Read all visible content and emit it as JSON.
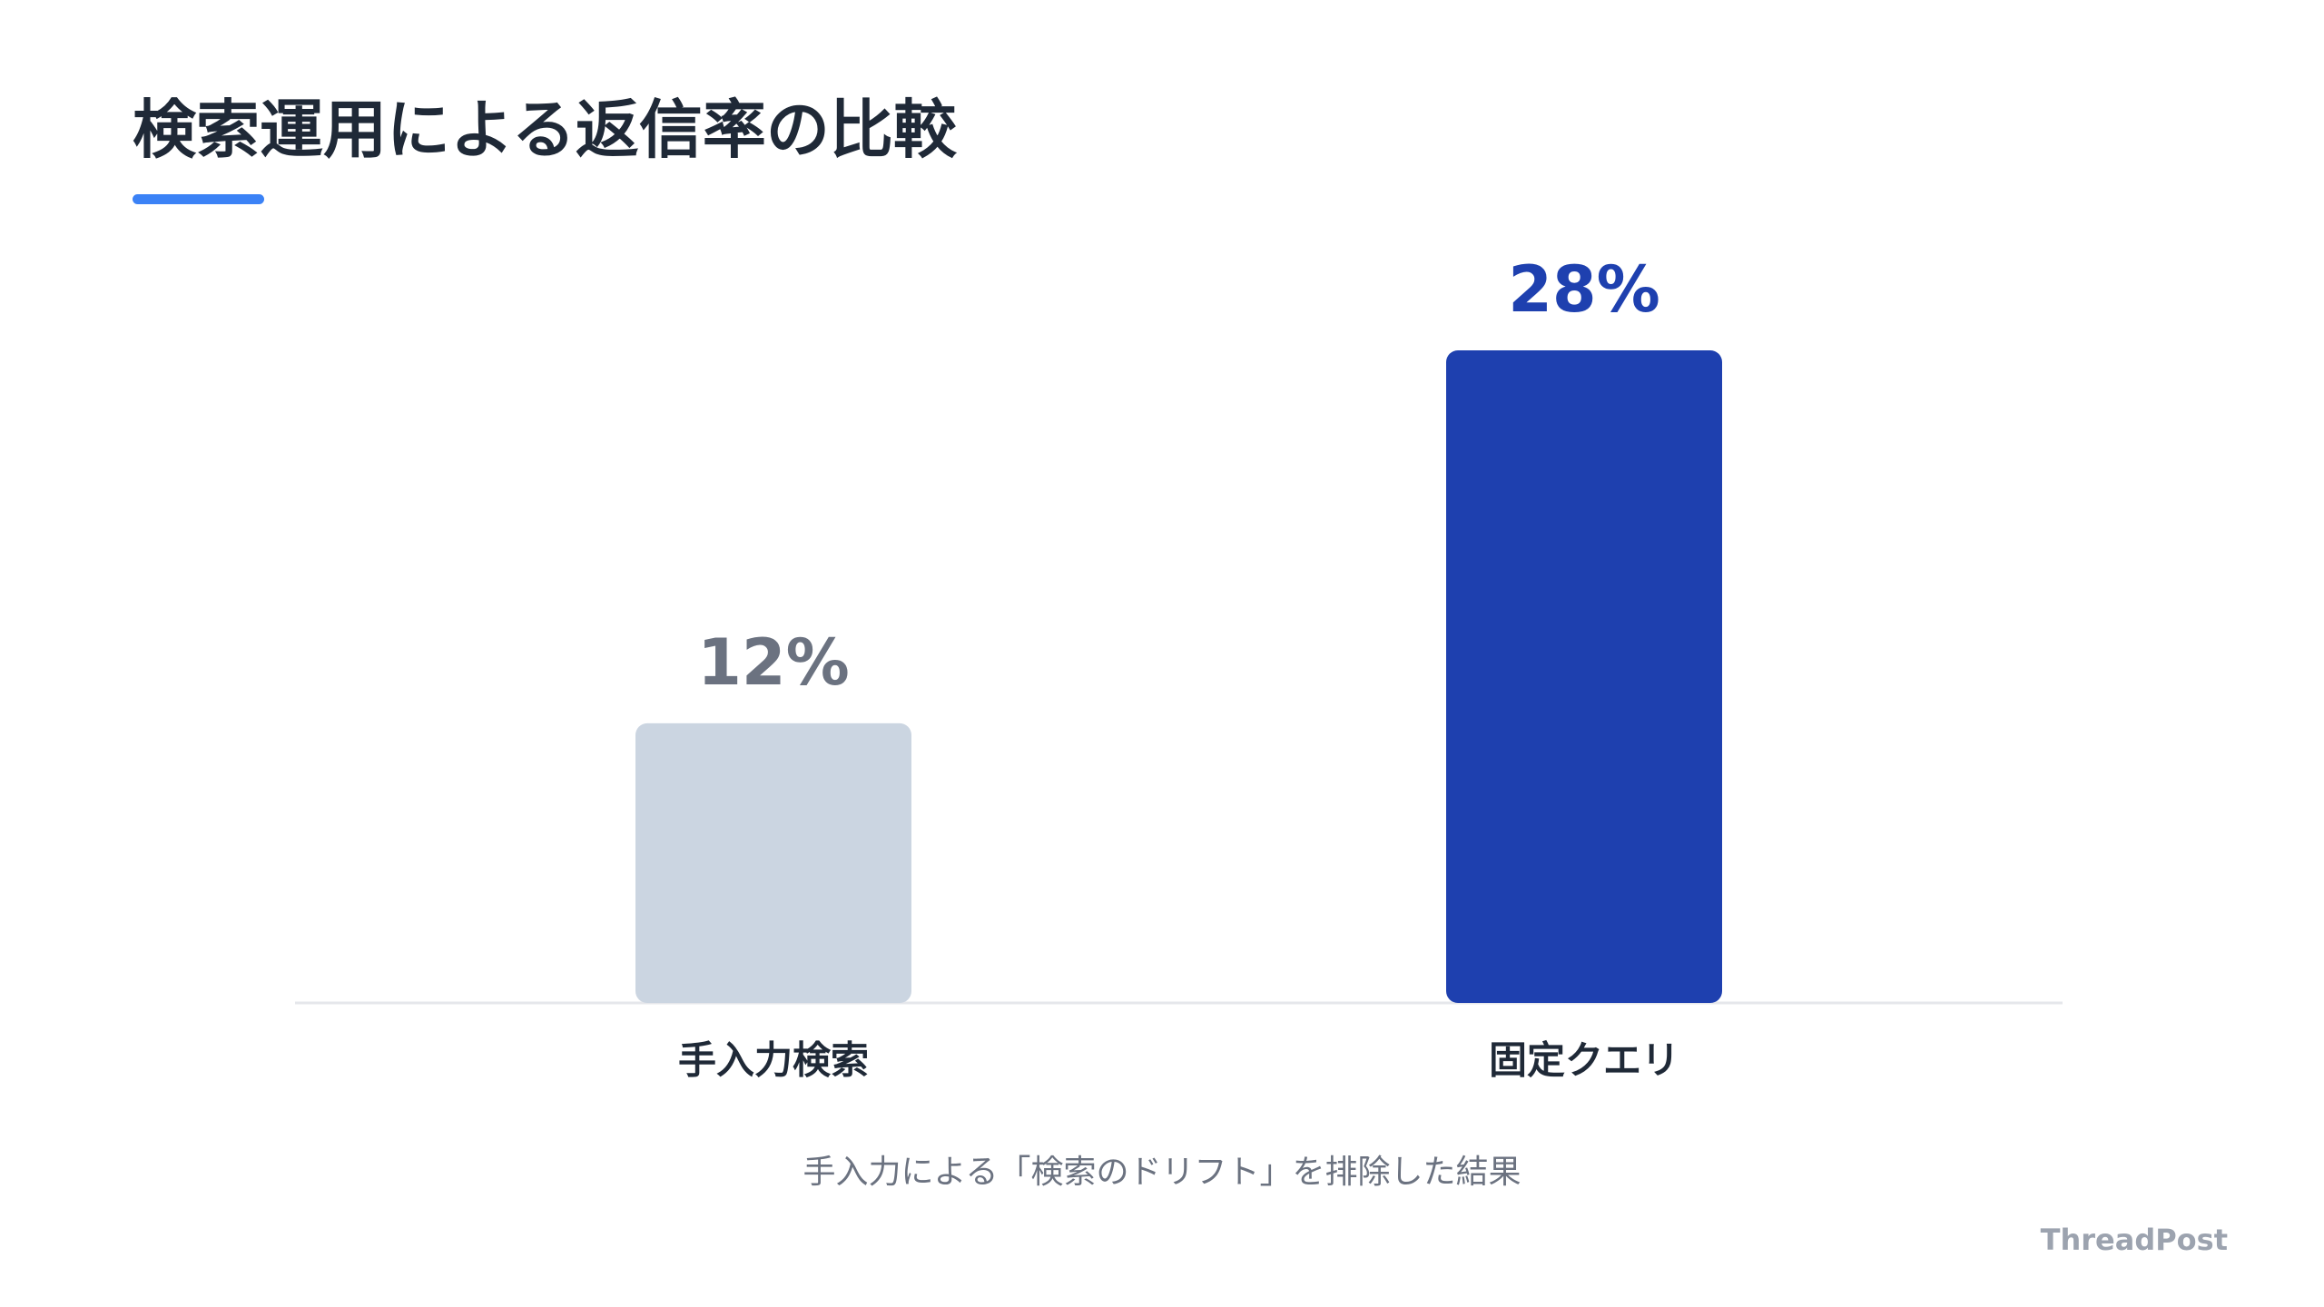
{
  "chart_data": {
    "type": "bar",
    "title": "検索運用による返信率の比較",
    "categories": [
      "手入力検索",
      "固定クエリ"
    ],
    "values": [
      12,
      28
    ],
    "value_labels": [
      "12%",
      "28%"
    ],
    "colors": [
      "#cbd5e1",
      "#1e40af"
    ],
    "caption": "手入力による「検索のドリフト」を排除した結果",
    "brand": "ThreadPost"
  }
}
